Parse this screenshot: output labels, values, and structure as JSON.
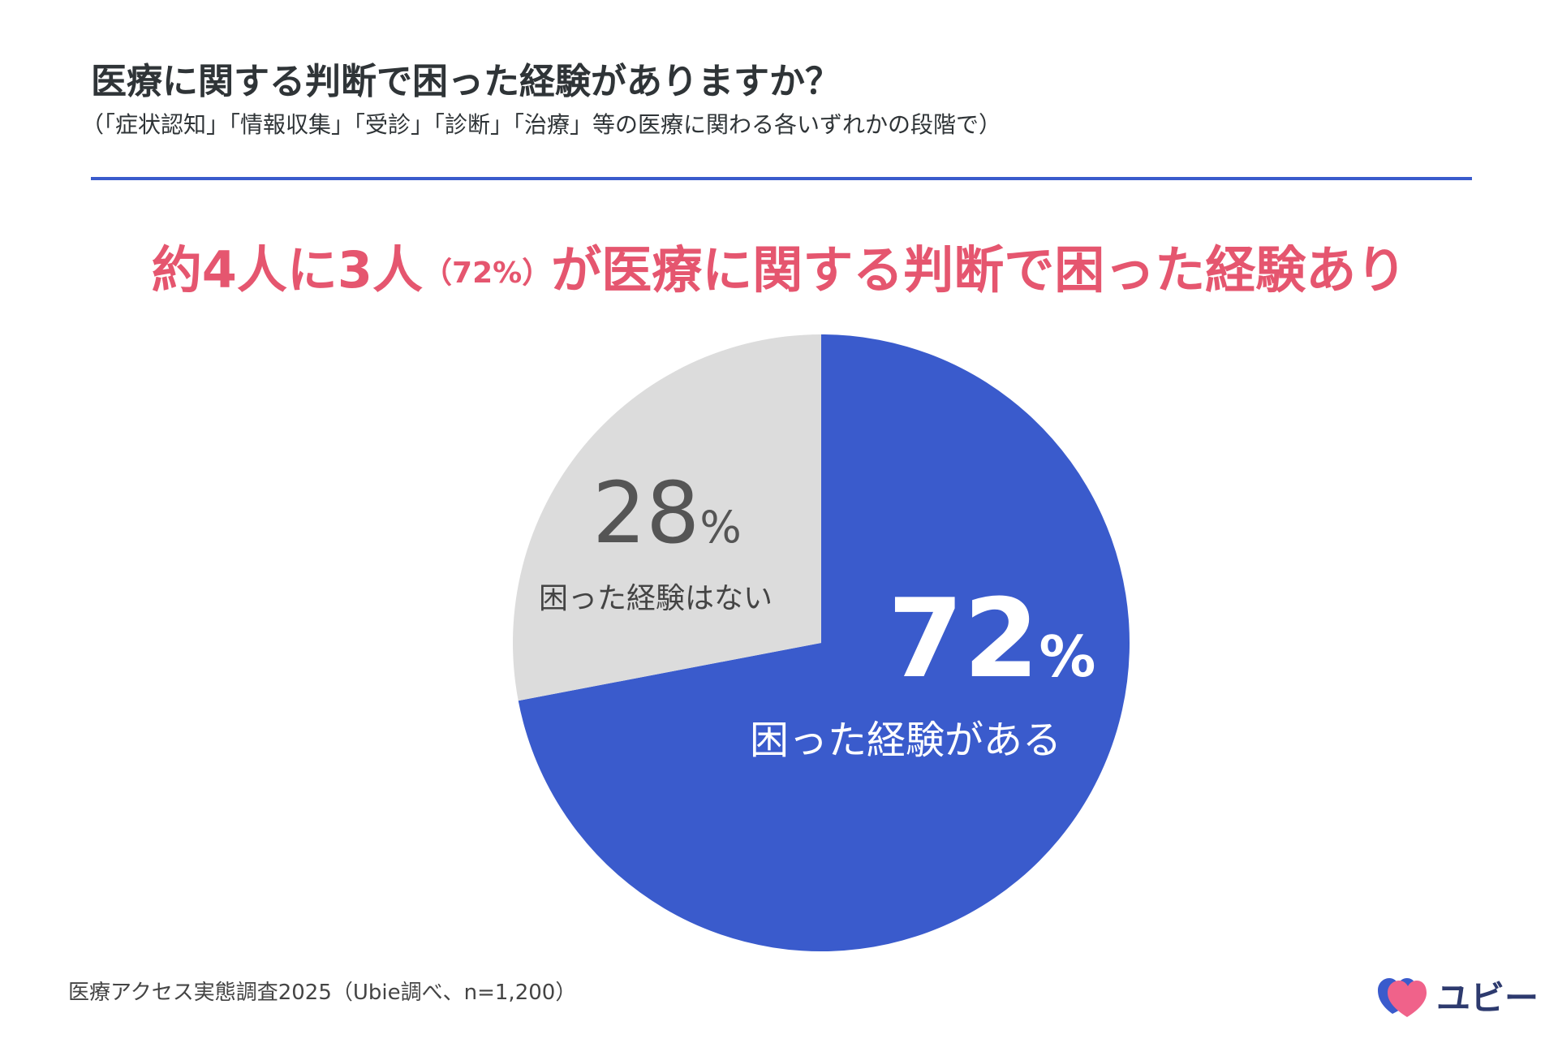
{
  "title": "医療に関する判断で困った経験がありますか？",
  "subtitle": "（「症状認知」「情報収集」「受診」「診断」「治療」等の医療に関わる各いずれかの段階で）",
  "headline": {
    "part1": "約4人に3人",
    "part2": "（72%）",
    "part3": "が医療に関する判断で困った経験あり"
  },
  "chart_data": {
    "type": "pie",
    "slices": [
      {
        "label": "困った経験がある",
        "value": 72,
        "value_text": "72",
        "unit": "%",
        "color": "#3a5bcc"
      },
      {
        "label": "困った経験はない",
        "value": 28,
        "value_text": "28",
        "unit": "%",
        "color": "#dcdcdc"
      }
    ],
    "start_angle_deg": 0,
    "direction": "clockwise"
  },
  "source": "医療アクセス実態調査2025（Ubie調べ、n=1,200）",
  "logo": {
    "text": "ユビー",
    "colors": {
      "heart_front": "#f0628a",
      "heart_back": "#3a5bcc"
    }
  },
  "colors": {
    "accent": "#3a5bcc",
    "headline": "#e5566f",
    "text": "#2f3437"
  }
}
